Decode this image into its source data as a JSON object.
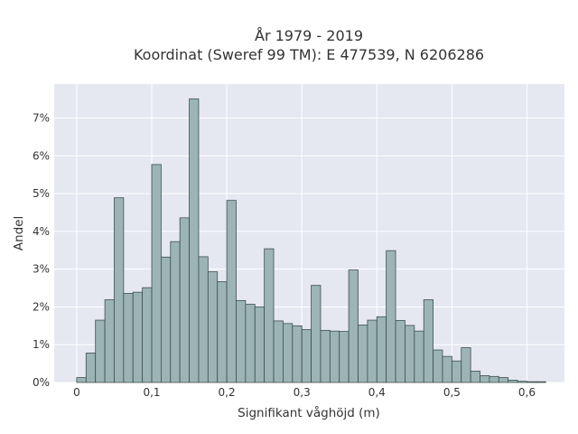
{
  "chart_data": {
    "type": "bar",
    "title": [
      "År 1979 - 2019",
      "Koordinat (Sweref 99 TM): E 477539, N 6206286"
    ],
    "xlabel": "Signifikant våghöjd (m)",
    "ylabel": "Andel",
    "xlim": [
      -0.03,
      0.65
    ],
    "ylim": [
      0,
      0.079
    ],
    "x_ticks": [
      0,
      0.1,
      0.2,
      0.3,
      0.4,
      0.5,
      0.6
    ],
    "x_tick_labels": [
      "0",
      "0,1",
      "0,2",
      "0,3",
      "0,4",
      "0,5",
      "0,6"
    ],
    "y_ticks": [
      0,
      0.01,
      0.02,
      0.03,
      0.04,
      0.05,
      0.06,
      0.07
    ],
    "y_tick_labels": [
      "0%",
      "1%",
      "2%",
      "3%",
      "4%",
      "5%",
      "6%",
      "7%"
    ],
    "bin_width": 0.0125,
    "bin_start": 0.0,
    "values": [
      0.0013,
      0.0078,
      0.0165,
      0.0219,
      0.0489,
      0.0236,
      0.0239,
      0.0251,
      0.0577,
      0.0332,
      0.0373,
      0.0436,
      0.0751,
      0.0333,
      0.0293,
      0.0267,
      0.0482,
      0.0217,
      0.0207,
      0.02,
      0.0354,
      0.0163,
      0.0156,
      0.015,
      0.014,
      0.0257,
      0.0138,
      0.0136,
      0.0135,
      0.0298,
      0.0152,
      0.0165,
      0.0174,
      0.0349,
      0.0164,
      0.0151,
      0.0136,
      0.0219,
      0.0086,
      0.0069,
      0.0057,
      0.0092,
      0.003,
      0.0018,
      0.0016,
      0.0013,
      0.0006,
      0.0003,
      0.0002,
      0.0002
    ],
    "grid": true,
    "colors": {
      "plot_background": "#e5e8f1",
      "bar_fill": "#9cb4b5",
      "bar_stroke": "#3f4f4f",
      "grid": "#ffffff",
      "text": "#333333"
    }
  }
}
